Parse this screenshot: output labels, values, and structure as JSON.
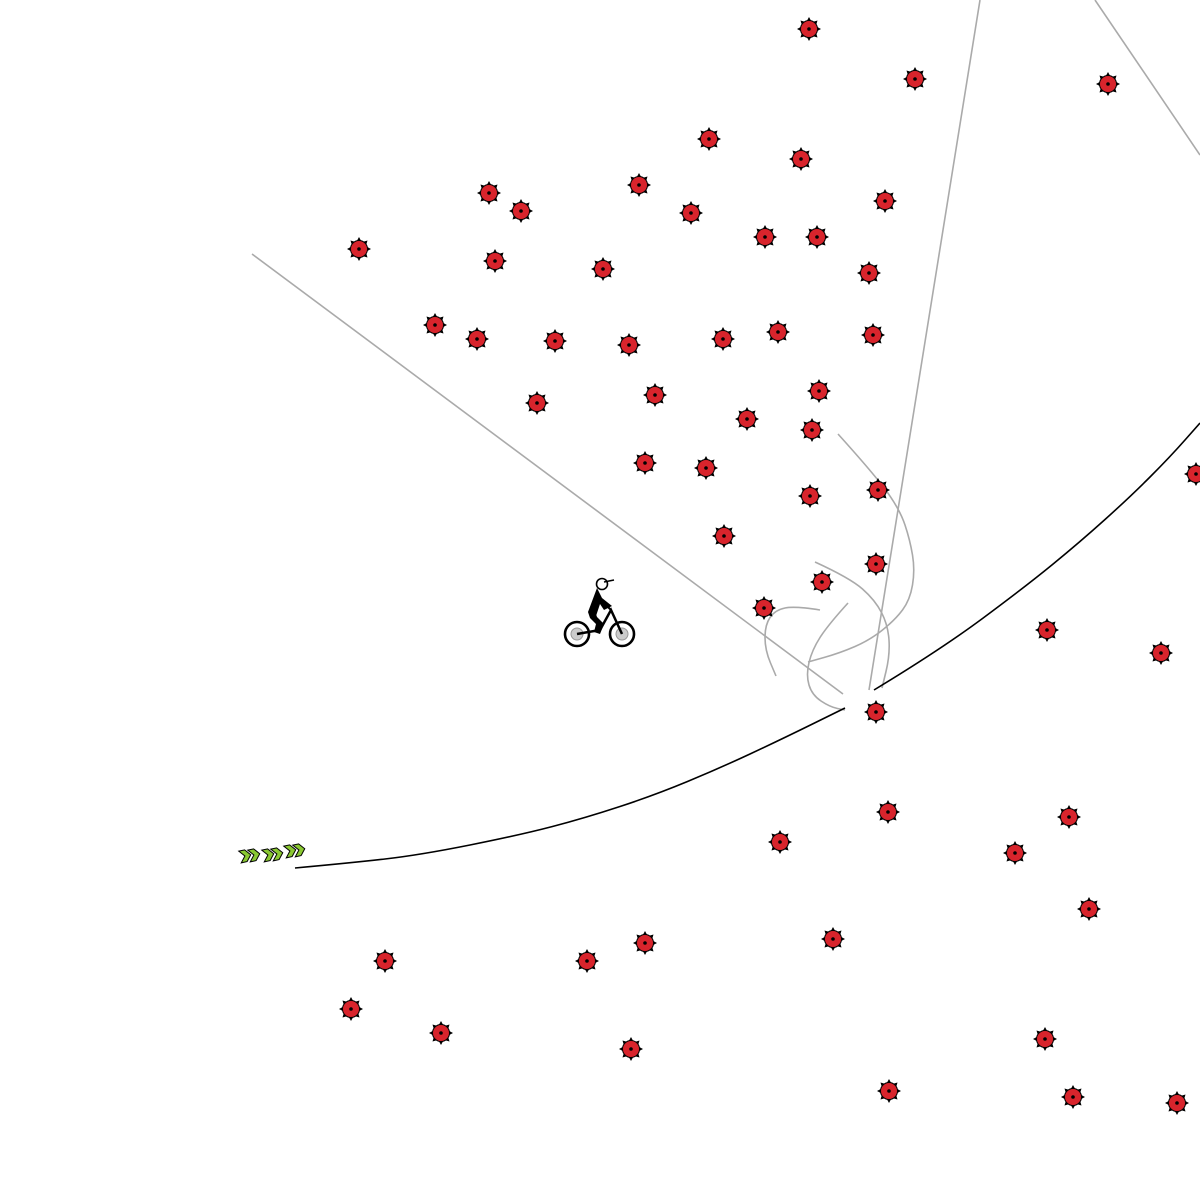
{
  "game": {
    "background_color": "#ffffff",
    "track_line_color": "#000000",
    "scenery_line_color": "#aaaaaa",
    "mine": {
      "icon": "mine-icon",
      "fill_color": "#d8242c",
      "spike_color": "#000000"
    },
    "boost": {
      "icon": "boost-chevrons-icon",
      "fill_color": "#8ac832"
    },
    "rider": {
      "icon": "bmx-rider-icon",
      "wheel_hub_color": "#cccccc"
    }
  }
}
